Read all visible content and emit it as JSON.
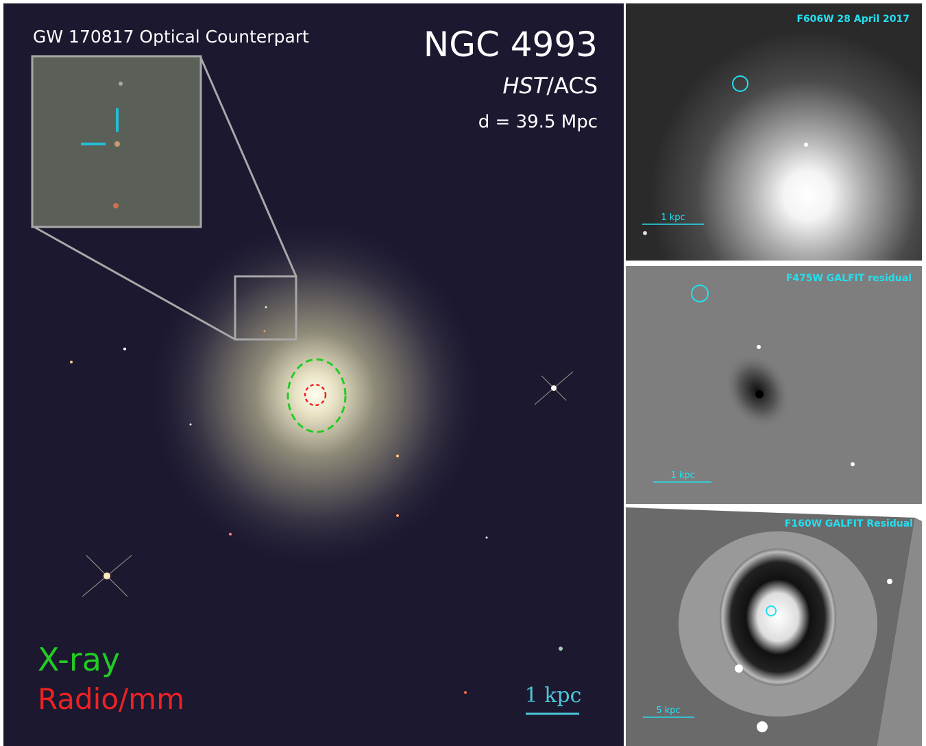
{
  "main_panel": {
    "inset_title": "GW 170817 Optical Counterpart",
    "galaxy_name": "NGC 4993",
    "instrument": {
      "telescope": "HST",
      "camera": "/ACS"
    },
    "distance": "d = 39.5 Mpc",
    "legend": [
      "X-ray",
      "Radio/mm"
    ],
    "scale_bar": "1 kpc"
  },
  "panels": [
    {
      "label": "F606W 28 April 2017",
      "scale_bar": "1 kpc"
    },
    {
      "label": "F475W GALFIT residual",
      "scale_bar": "1 kpc"
    },
    {
      "label": "F160W GALFIT Residual",
      "scale_bar": "5 kpc"
    }
  ]
}
